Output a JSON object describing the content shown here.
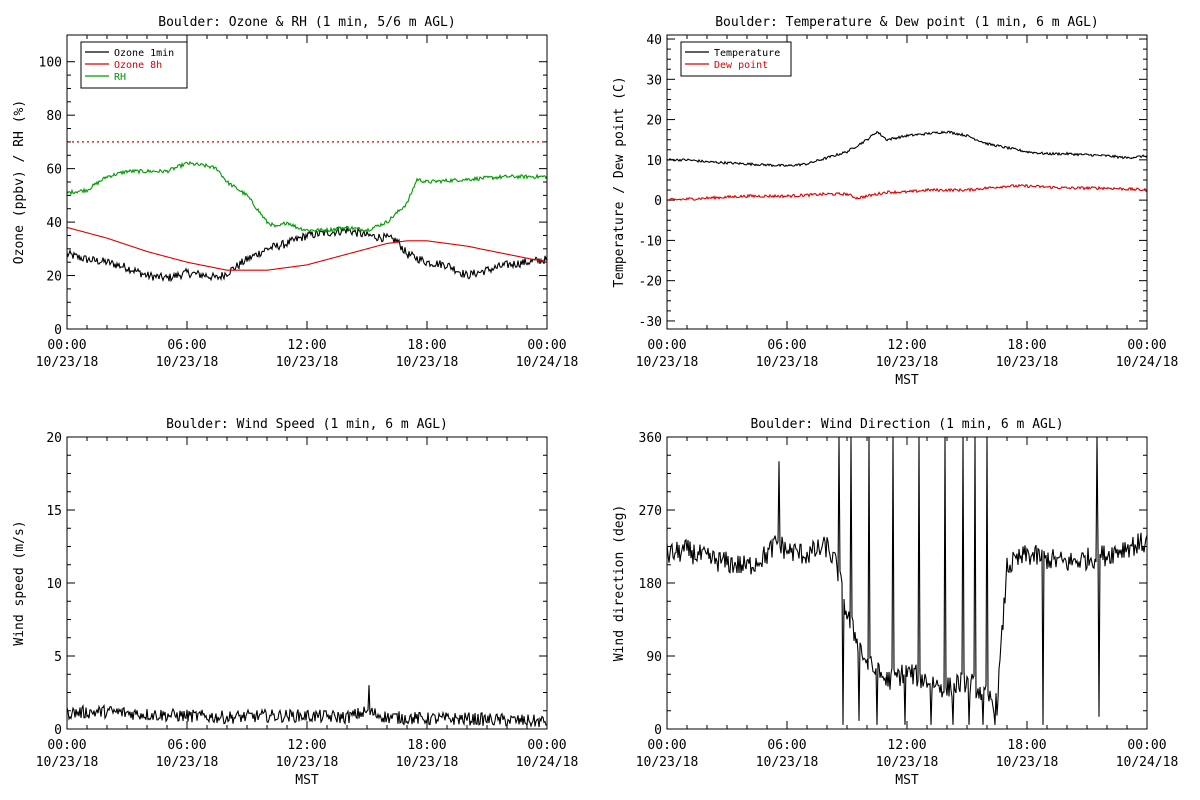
{
  "figure": {
    "chart_data": [
      {
        "id": "ozone_rh",
        "type": "line",
        "title": "Boulder: Ozone & RH (1 min, 5/6 m AGL)",
        "xlabel": "",
        "ylabel": "Ozone (ppbv) / RH (%)",
        "ylim": [
          0,
          110
        ],
        "yticks": [
          0,
          20,
          40,
          60,
          80,
          100
        ],
        "xlim": [
          0,
          24
        ],
        "xticks": [
          0,
          6,
          12,
          18,
          24
        ],
        "xtick_labels": [
          [
            "00:00",
            "10/23/18"
          ],
          [
            "06:00",
            "10/23/18"
          ],
          [
            "12:00",
            "10/23/18"
          ],
          [
            "18:00",
            "10/23/18"
          ],
          [
            "00:00",
            "10/24/18"
          ]
        ],
        "legend": {
          "position": "top-left",
          "entries": [
            {
              "name": "Ozone 1min",
              "color": "#000000"
            },
            {
              "name": "Ozone 8h",
              "color": "#dd0000"
            },
            {
              "name": "RH",
              "color": "#009900"
            }
          ]
        },
        "reference_lines": [
          {
            "y": 70,
            "style": "dotted",
            "color": "#dd0000"
          }
        ],
        "series": [
          {
            "name": "Ozone 1min",
            "color": "#000000",
            "noise": 1.6,
            "x": [
              0,
              1,
              2,
              3,
              4,
              5,
              6,
              7,
              7.5,
              8,
              9,
              10,
              11,
              12,
              13,
              14,
              15,
              16,
              16.5,
              17,
              18,
              19,
              20,
              21,
              22,
              23,
              24
            ],
            "y": [
              28,
              26,
              25,
              23,
              20,
              19,
              21,
              20,
              19,
              21,
              26,
              30,
              32,
              35,
              36,
              37,
              35,
              34,
              33,
              28,
              25,
              24,
              20,
              22,
              24,
              25,
              26
            ]
          },
          {
            "name": "Ozone 8h",
            "color": "#dd0000",
            "noise": 0,
            "x": [
              0,
              2,
              4,
              6,
              8,
              10,
              12,
              14,
              16,
              17,
              18,
              19,
              20,
              22,
              24
            ],
            "y": [
              38,
              34,
              29,
              25,
              22,
              22,
              24,
              28,
              32,
              33,
              33,
              32,
              31,
              28,
              25
            ]
          },
          {
            "name": "RH",
            "color": "#009900",
            "noise": 0.7,
            "x": [
              0,
              1,
              2,
              3,
              4,
              5,
              6,
              7,
              7.5,
              8,
              9,
              9.5,
              10,
              10.5,
              11,
              11.5,
              12,
              13,
              14,
              15,
              16,
              17,
              17.5,
              18,
              20,
              22,
              23,
              24
            ],
            "y": [
              51,
              52,
              57,
              59,
              59,
              59,
              62,
              61,
              60,
              55,
              50,
              45,
              40,
              38,
              40,
              38,
              37,
              37,
              38,
              37,
              40,
              47,
              56,
              55,
              56,
              57,
              57,
              57
            ]
          }
        ]
      },
      {
        "id": "temp_dew",
        "type": "line",
        "title": "Boulder: Temperature & Dew point (1 min, 6 m AGL)",
        "xlabel": "MST",
        "ylabel": "Temperature / Dew point (C)",
        "ylim": [
          -32,
          41
        ],
        "yticks": [
          -30,
          -20,
          -10,
          0,
          10,
          20,
          30,
          40
        ],
        "xlim": [
          0,
          24
        ],
        "xticks": [
          0,
          6,
          12,
          18,
          24
        ],
        "xtick_labels": [
          [
            "00:00",
            "10/23/18"
          ],
          [
            "06:00",
            "10/23/18"
          ],
          [
            "12:00",
            "10/23/18"
          ],
          [
            "18:00",
            "10/23/18"
          ],
          [
            "00:00",
            "10/24/18"
          ]
        ],
        "legend": {
          "position": "top-left",
          "entries": [
            {
              "name": "Temperature",
              "color": "#000000"
            },
            {
              "name": "Dew point",
              "color": "#dd0000"
            }
          ]
        },
        "reference_lines": [],
        "series": [
          {
            "name": "Temperature",
            "color": "#000000",
            "noise": 0.3,
            "x": [
              0,
              1,
              2,
              4,
              6,
              7,
              8,
              9,
              10,
              10.5,
              11,
              12,
              13,
              14,
              15,
              16,
              17,
              18,
              19,
              20,
              22,
              23,
              24
            ],
            "y": [
              10,
              10,
              9.5,
              9,
              8.5,
              9,
              10.5,
              12,
              15,
              17,
              15,
              16,
              16.5,
              17,
              16,
              14,
              13,
              12,
              11.5,
              11.5,
              11,
              10.5,
              11
            ]
          },
          {
            "name": "Dew point",
            "color": "#dd0000",
            "noise": 0.35,
            "x": [
              0,
              2,
              4,
              6,
              8,
              9,
              9.5,
              10,
              11,
              12,
              13,
              14,
              15,
              16,
              17,
              18,
              20,
              22,
              24
            ],
            "y": [
              0,
              0.5,
              1,
              1,
              1.5,
              1.5,
              0.5,
              1,
              2,
              2,
              2.5,
              2.5,
              2.5,
              3,
              3.5,
              3.5,
              3,
              3,
              2.5
            ]
          }
        ]
      },
      {
        "id": "wind_speed",
        "type": "line",
        "title": "Boulder: Wind Speed (1 min, 6 m AGL)",
        "xlabel": "MST",
        "ylabel": "Wind speed (m/s)",
        "ylim": [
          0,
          20
        ],
        "yticks": [
          0,
          5,
          10,
          15,
          20
        ],
        "xlim": [
          0,
          24
        ],
        "xticks": [
          0,
          6,
          12,
          18,
          24
        ],
        "xtick_labels": [
          [
            "00:00",
            "10/23/18"
          ],
          [
            "06:00",
            "10/23/18"
          ],
          [
            "12:00",
            "10/23/18"
          ],
          [
            "18:00",
            "10/23/18"
          ],
          [
            "00:00",
            "10/24/18"
          ]
        ],
        "legend": null,
        "reference_lines": [],
        "series": [
          {
            "name": "",
            "color": "#000000",
            "noise": 0.45,
            "x": [
              0,
              2,
              4,
              6,
              8,
              10,
              12,
              14,
              15,
              16,
              18,
              20,
              22,
              24
            ],
            "y": [
              1.1,
              1.2,
              1.0,
              0.9,
              0.8,
              0.9,
              0.9,
              0.8,
              1.2,
              0.8,
              0.7,
              0.7,
              0.6,
              0.5
            ],
            "spikes": [
              {
                "x": 15.1,
                "y": 3.0
              }
            ]
          }
        ]
      },
      {
        "id": "wind_dir",
        "type": "line",
        "title": "Boulder: Wind Direction (1 min, 6 m AGL)",
        "xlabel": "MST",
        "ylabel": "Wind direction (deg)",
        "ylim": [
          0,
          360
        ],
        "yticks": [
          0,
          90,
          180,
          270,
          360
        ],
        "xlim": [
          0,
          24
        ],
        "xticks": [
          0,
          6,
          12,
          18,
          24
        ],
        "xtick_labels": [
          [
            "00:00",
            "10/23/18"
          ],
          [
            "06:00",
            "10/23/18"
          ],
          [
            "12:00",
            "10/23/18"
          ],
          [
            "18:00",
            "10/23/18"
          ],
          [
            "00:00",
            "10/24/18"
          ]
        ],
        "legend": null,
        "reference_lines": [],
        "series": [
          {
            "name": "",
            "color": "#000000",
            "noise": 14,
            "x": [
              0,
              1,
              2,
              3,
              4,
              5,
              5.5,
              6,
              7,
              8,
              8.5,
              9,
              10,
              11,
              12,
              13,
              14,
              15,
              16,
              16.5,
              17,
              18,
              19,
              20,
              21,
              22,
              23,
              24
            ],
            "y": [
              215,
              220,
              210,
              205,
              200,
              215,
              230,
              220,
              215,
              225,
              200,
              140,
              80,
              60,
              70,
              60,
              50,
              60,
              40,
              30,
              200,
              215,
              210,
              205,
              210,
              215,
              225,
              230
            ],
            "spikes": [
              {
                "x": 5.6,
                "y": 330
              },
              {
                "x": 8.6,
                "y": 360
              },
              {
                "x": 8.8,
                "y": 5
              },
              {
                "x": 9.2,
                "y": 360
              },
              {
                "x": 9.6,
                "y": 10
              },
              {
                "x": 10.1,
                "y": 360
              },
              {
                "x": 10.5,
                "y": 5
              },
              {
                "x": 11.3,
                "y": 360
              },
              {
                "x": 11.9,
                "y": 5
              },
              {
                "x": 12.6,
                "y": 360
              },
              {
                "x": 13.2,
                "y": 5
              },
              {
                "x": 13.9,
                "y": 360
              },
              {
                "x": 14.3,
                "y": 5
              },
              {
                "x": 14.8,
                "y": 360
              },
              {
                "x": 15.1,
                "y": 5
              },
              {
                "x": 15.4,
                "y": 360
              },
              {
                "x": 15.8,
                "y": 5
              },
              {
                "x": 16.0,
                "y": 360
              },
              {
                "x": 16.4,
                "y": 5
              },
              {
                "x": 18.8,
                "y": 5
              },
              {
                "x": 21.5,
                "y": 360
              },
              {
                "x": 21.6,
                "y": 15
              }
            ]
          }
        ]
      }
    ]
  }
}
